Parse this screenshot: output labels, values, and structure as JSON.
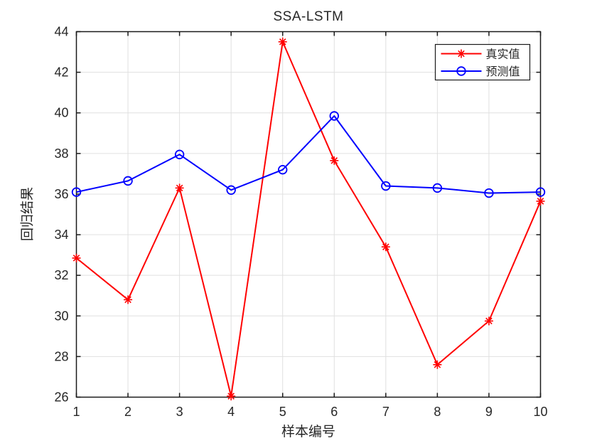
{
  "chart_data": {
    "type": "line",
    "title": "SSA-LSTM",
    "xlabel": "样本编号",
    "ylabel": "回归结果",
    "x": [
      1,
      2,
      3,
      4,
      5,
      6,
      7,
      8,
      9,
      10
    ],
    "xticks": [
      1,
      2,
      3,
      4,
      5,
      6,
      7,
      8,
      9,
      10
    ],
    "yticks": [
      26,
      28,
      30,
      32,
      34,
      36,
      38,
      40,
      42,
      44
    ],
    "xlim": [
      1,
      10
    ],
    "ylim": [
      26,
      44
    ],
    "grid": true,
    "legend_position": "top-right",
    "series": [
      {
        "name": "真实值",
        "color": "#FF0000",
        "marker": "asterisk",
        "values": [
          32.85,
          30.8,
          36.3,
          26.05,
          43.5,
          37.65,
          33.4,
          27.6,
          29.75,
          35.65
        ]
      },
      {
        "name": "预测值",
        "color": "#0000FF",
        "marker": "circle",
        "values": [
          36.1,
          36.65,
          37.95,
          36.2,
          37.2,
          39.85,
          36.4,
          36.3,
          36.05,
          36.1
        ]
      }
    ],
    "colors": {
      "axis": "#1a1a1a",
      "grid": "#e0e0e0",
      "text": "#262626",
      "background": "#ffffff"
    }
  }
}
